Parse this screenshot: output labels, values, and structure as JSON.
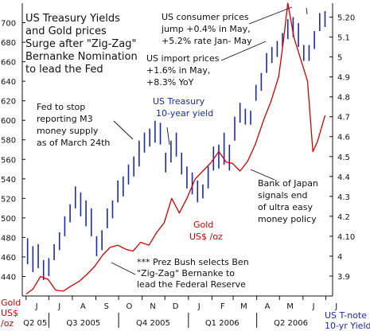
{
  "colors": {
    "background": "#ffffff",
    "bar": "#1a2aa8",
    "gold": "#d40000",
    "text": "#111111",
    "blue_text": "#1a2aa8",
    "red_text": "#cc0000"
  },
  "chart_data": {
    "type": "line",
    "title": "US Treasury Yields and Gold prices Surge after \"Zig-Zag\" Bernanke Nomination to lead the Fed",
    "title_lines": [
      "US Treasury Yields",
      "and Gold prices",
      "Surge after \"Zig-Zag\"",
      "Bernanke Nomination",
      "to lead the Fed"
    ],
    "left_axis": {
      "label_lines": [
        "Gold",
        "US$",
        "/oz"
      ],
      "ylim": [
        420,
        720
      ],
      "ticks": [
        "440",
        "460",
        "480",
        "500",
        "520",
        "540",
        "560",
        "580",
        "600",
        "620",
        "640",
        "660",
        "680",
        "700"
      ]
    },
    "right_axis": {
      "label_lines": [
        "US T-note",
        "10-yr Yield"
      ],
      "ylim": [
        3.8,
        5.27
      ],
      "ticks": [
        "3.9",
        "4",
        "4.10",
        "4.2",
        "4.3",
        "4.4",
        "4.5",
        "4.6",
        "4.7",
        "4.8",
        "4.9",
        "5",
        "5.1",
        "5.20"
      ]
    },
    "month_labels": [
      "J",
      "J",
      "A",
      "S",
      "O",
      "N",
      "D",
      "J",
      "F",
      "M",
      "A",
      "M",
      "J",
      "J"
    ],
    "quarter_labels": [
      "Q2 05",
      "Q3 2005",
      "Q4 2005",
      "Q1 2006",
      "Q2 2006"
    ],
    "series": [
      {
        "name": "US Treasury 10-year yield",
        "kind": "weekly high-low bars",
        "axis": "right",
        "weeks": [
          "2005-06-03",
          "2005-06-10",
          "2005-06-17",
          "2005-06-24",
          "2005-07-01",
          "2005-07-08",
          "2005-07-15",
          "2005-07-22",
          "2005-07-29",
          "2005-08-05",
          "2005-08-12",
          "2005-08-19",
          "2005-08-26",
          "2005-09-02",
          "2005-09-09",
          "2005-09-16",
          "2005-09-23",
          "2005-09-30",
          "2005-10-07",
          "2005-10-14",
          "2005-10-21",
          "2005-10-28",
          "2005-11-04",
          "2005-11-11",
          "2005-11-18",
          "2005-11-25",
          "2005-12-02",
          "2005-12-09",
          "2005-12-16",
          "2005-12-23",
          "2005-12-30",
          "2006-01-06",
          "2006-01-13",
          "2006-01-20",
          "2006-01-27",
          "2006-02-03",
          "2006-02-10",
          "2006-02-17",
          "2006-02-24",
          "2006-03-03",
          "2006-03-10",
          "2006-03-17",
          "2006-03-24",
          "2006-03-31",
          "2006-04-07",
          "2006-04-14",
          "2006-04-21",
          "2006-04-28",
          "2006-05-05",
          "2006-05-12",
          "2006-05-19",
          "2006-05-26",
          "2006-06-02",
          "2006-06-09",
          "2006-06-16",
          "2006-06-23",
          "2006-06-30"
        ],
        "highs": [
          4.09,
          4.05,
          4.06,
          3.98,
          3.99,
          4.06,
          4.12,
          4.2,
          4.26,
          4.35,
          4.32,
          4.28,
          4.24,
          4.1,
          4.13,
          4.24,
          4.28,
          4.38,
          4.4,
          4.46,
          4.5,
          4.58,
          4.62,
          4.64,
          4.68,
          4.67,
          4.52,
          4.58,
          4.62,
          4.52,
          4.45,
          4.42,
          4.38,
          4.36,
          4.45,
          4.55,
          4.56,
          4.62,
          4.56,
          4.7,
          4.77,
          4.74,
          4.73,
          4.86,
          4.92,
          5.02,
          5.05,
          5.08,
          5.12,
          5.19,
          5.2,
          5.17,
          5.06,
          5.06,
          5.13,
          5.22,
          5.23
        ],
        "lows": [
          3.96,
          3.92,
          3.94,
          3.88,
          3.9,
          3.98,
          4.03,
          4.1,
          4.17,
          4.24,
          4.2,
          4.15,
          4.1,
          4.0,
          4.03,
          4.14,
          4.19,
          4.27,
          4.3,
          4.36,
          4.4,
          4.45,
          4.52,
          4.55,
          4.57,
          4.56,
          4.42,
          4.47,
          4.5,
          4.41,
          4.34,
          4.31,
          4.27,
          4.29,
          4.34,
          4.43,
          4.44,
          4.46,
          4.43,
          4.58,
          4.67,
          4.66,
          4.66,
          4.78,
          4.83,
          4.92,
          4.97,
          5.0,
          5.05,
          5.09,
          5.1,
          5.05,
          4.98,
          4.98,
          5.04,
          5.13,
          5.15
        ]
      },
      {
        "name": "Gold US$ /oz",
        "kind": "line",
        "axis": "left",
        "x": [
          "2005-06-01",
          "2005-06-10",
          "2005-06-20",
          "2005-06-30",
          "2005-07-10",
          "2005-07-20",
          "2005-07-30",
          "2005-08-10",
          "2005-08-20",
          "2005-08-30",
          "2005-09-10",
          "2005-09-20",
          "2005-09-30",
          "2005-10-10",
          "2005-10-20",
          "2005-10-30",
          "2005-11-10",
          "2005-11-20",
          "2005-11-30",
          "2005-12-10",
          "2005-12-20",
          "2005-12-30",
          "2006-01-10",
          "2006-01-20",
          "2006-01-30",
          "2006-02-10",
          "2006-02-20",
          "2006-02-28",
          "2006-03-10",
          "2006-03-20",
          "2006-03-30",
          "2006-04-10",
          "2006-04-20",
          "2006-04-30",
          "2006-05-06",
          "2006-05-12",
          "2006-05-20",
          "2006-05-30",
          "2006-06-07",
          "2006-06-14",
          "2006-06-20",
          "2006-06-30"
        ],
        "y": [
          422,
          427,
          440,
          437,
          426,
          425,
          430,
          435,
          442,
          450,
          462,
          470,
          472,
          468,
          466,
          475,
          472,
          485,
          495,
          520,
          505,
          520,
          540,
          548,
          556,
          568,
          557,
          556,
          548,
          558,
          575,
          600,
          620,
          645,
          680,
          720,
          685,
          660,
          640,
          568,
          578,
          605
        ]
      }
    ],
    "annotations": [
      {
        "lines": [
          "US consumer prices",
          "jump +0.4% in May,",
          "+5.2% rate Jan- May"
        ]
      },
      {
        "lines": [
          "US import prices",
          "+1.6% in May,",
          "+8.3% YoY"
        ]
      },
      {
        "lines": [
          "Fed to stop",
          "reporting M3",
          "money supply",
          "as of March 24th"
        ]
      },
      {
        "lines": [
          "US Treasury",
          "10-year yield"
        ],
        "color": "blue"
      },
      {
        "lines": [
          "Bank of Japan",
          "signals end",
          "of ultra easy",
          "money policy"
        ]
      },
      {
        "lines": [
          "Gold",
          "US$ /oz"
        ],
        "color": "red"
      },
      {
        "lines": [
          "*** Prez Bush selects Ben",
          "\"Zig-Zag\" Bernanke to",
          "lead the Federal Reserve"
        ]
      }
    ]
  }
}
